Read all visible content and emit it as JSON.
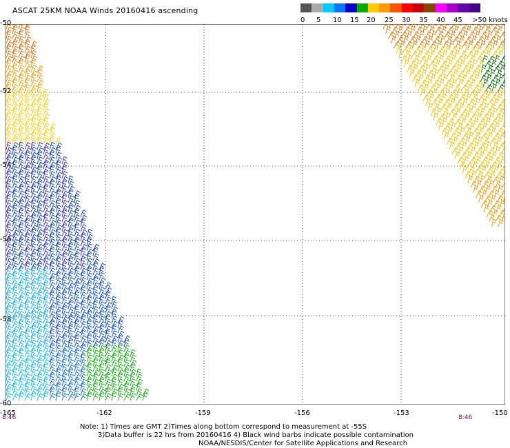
{
  "title": "ASCAT 25KM NOAA Winds 20160416 ascending",
  "colorbar": {
    "labels": [
      "0",
      "5",
      "10",
      "15",
      "20",
      "25",
      "30",
      "35",
      "40",
      "45",
      ">50 knots"
    ],
    "colors": [
      "#555555",
      "#aaaaaa",
      "#00ccff",
      "#0077ff",
      "#0000cc",
      "#00aa00",
      "#ffcc00",
      "#ff9900",
      "#ff5500",
      "#ff0000",
      "#cc0000",
      "#884400",
      "#ff00ff",
      "#aa00cc",
      "#6600aa",
      "#440088"
    ]
  },
  "map": {
    "latitudes": [
      "-50",
      "-52",
      "-54",
      "-56",
      "-58",
      "-60"
    ],
    "longitudes": [
      "-165",
      "-162",
      "-159",
      "-156",
      "-153",
      "-150"
    ],
    "time_labels": [
      "8:46",
      "8:46"
    ]
  },
  "notes": {
    "line1": "Note: 1) Times are GMT 2)Times along bottom correspond to measurement at -55S",
    "line2": "3)Data buffer is 22 hrs from 20160416 4) Black wind barbs indicate possible contamination",
    "line3": "NOAA/NESDIS/Center for Satellite Applications and Research"
  }
}
